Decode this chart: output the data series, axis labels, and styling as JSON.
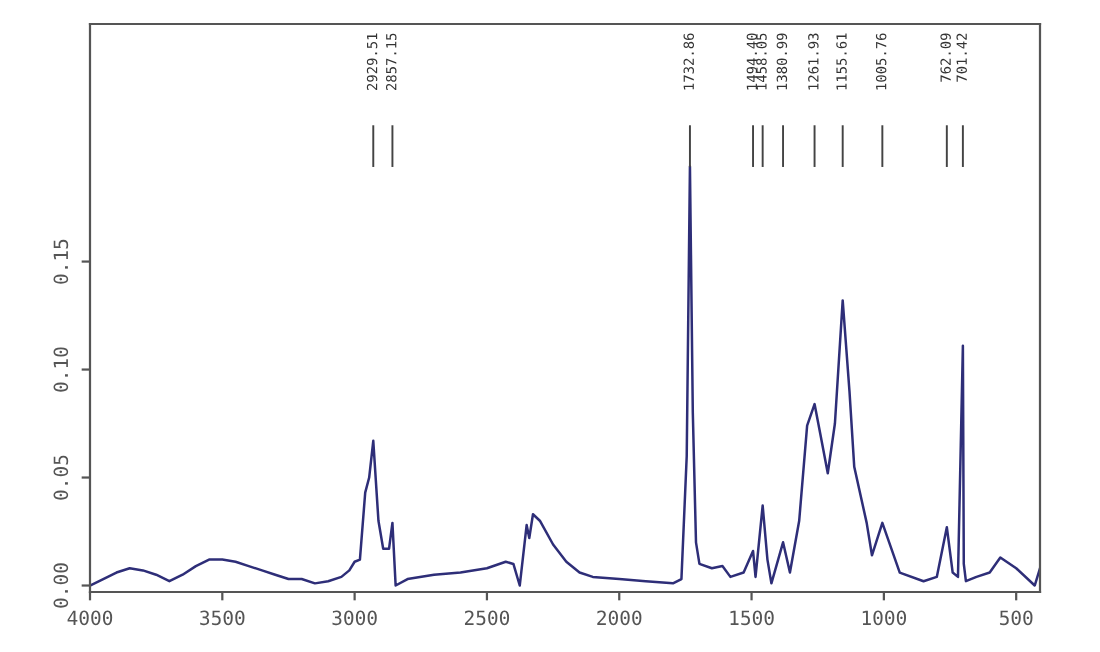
{
  "chart_data": {
    "type": "line",
    "color": "#2e2e78",
    "x": [
      4000,
      3950,
      3900,
      3850,
      3800,
      3750,
      3700,
      3650,
      3600,
      3550,
      3500,
      3450,
      3400,
      3350,
      3300,
      3250,
      3200,
      3150,
      3100,
      3050,
      3020,
      3000,
      2980,
      2960,
      2945,
      2929.51,
      2910,
      2892,
      2870,
      2857.15,
      2845,
      2800,
      2700,
      2600,
      2500,
      2429,
      2400,
      2376,
      2350,
      2340,
      2326,
      2300,
      2250,
      2200,
      2150,
      2100,
      2000,
      1900,
      1797,
      1765,
      1745,
      1732.86,
      1722,
      1710,
      1697,
      1650,
      1610,
      1580,
      1530,
      1494.4,
      1485,
      1458.05,
      1440,
      1425,
      1380.99,
      1355,
      1320,
      1290,
      1261.93,
      1240,
      1212,
      1185,
      1155.61,
      1130,
      1112,
      1065,
      1045,
      1005.76,
      980,
      940,
      850,
      800,
      762.09,
      740,
      720,
      701.42,
      698,
      690,
      650,
      600,
      560,
      500,
      430,
      410
    ],
    "values": [
      0.0,
      0.003,
      0.006,
      0.008,
      0.007,
      0.005,
      0.002,
      0.005,
      0.009,
      0.012,
      0.012,
      0.011,
      0.009,
      0.007,
      0.005,
      0.003,
      0.003,
      0.001,
      0.002,
      0.004,
      0.007,
      0.011,
      0.012,
      0.043,
      0.05,
      0.067,
      0.03,
      0.017,
      0.017,
      0.029,
      0.0,
      0.003,
      0.005,
      0.006,
      0.008,
      0.011,
      0.01,
      0.0,
      0.028,
      0.022,
      0.033,
      0.03,
      0.019,
      0.011,
      0.006,
      0.004,
      0.003,
      0.002,
      0.001,
      0.003,
      0.06,
      0.194,
      0.08,
      0.02,
      0.01,
      0.008,
      0.009,
      0.004,
      0.006,
      0.016,
      0.004,
      0.037,
      0.012,
      0.001,
      0.02,
      0.006,
      0.03,
      0.074,
      0.084,
      0.07,
      0.052,
      0.075,
      0.132,
      0.09,
      0.055,
      0.029,
      0.014,
      0.029,
      0.02,
      0.006,
      0.002,
      0.004,
      0.027,
      0.006,
      0.004,
      0.111,
      0.01,
      0.002,
      0.004,
      0.006,
      0.013,
      0.008,
      0.0,
      0.008
    ],
    "xlim": [
      4000,
      410
    ],
    "ylim": [
      -0.003,
      0.26
    ],
    "xticks": [
      4000,
      3500,
      3000,
      2500,
      2000,
      1500,
      1000,
      500
    ],
    "yticks": [
      {
        "value": 0,
        "label": "0.00"
      },
      {
        "value": 0.05,
        "label": "0.05"
      },
      {
        "value": 0.1,
        "label": "0.10"
      },
      {
        "value": 0.15,
        "label": "0.15"
      }
    ],
    "grid": false,
    "legend": false,
    "marker": "none",
    "line_style": "solid",
    "annotations": [
      "2929.51",
      "2857.15",
      "1732.86",
      "1494.40",
      "1458.05",
      "1380.99",
      "1261.93",
      "1155.61",
      "1005.76",
      "762.09",
      "701.42"
    ]
  }
}
